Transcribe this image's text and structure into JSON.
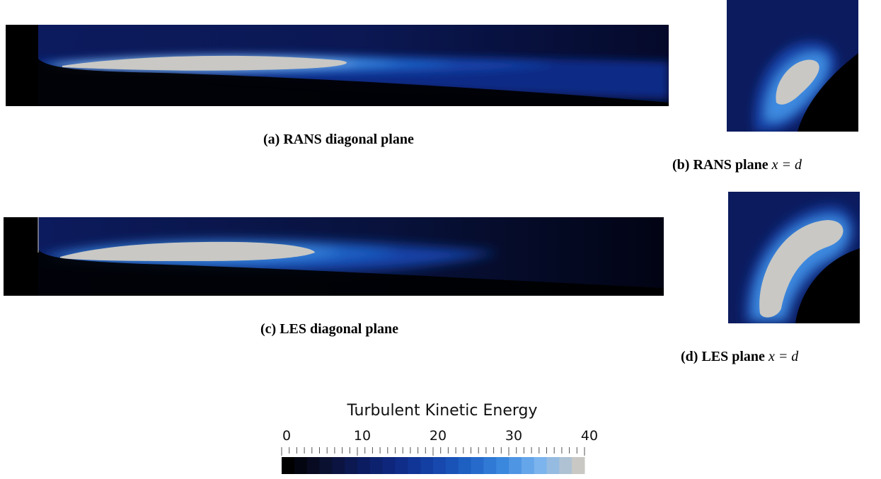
{
  "figure": {
    "panels": [
      {
        "id": "a",
        "label": "(a)",
        "title": "RANS diagonal plane",
        "math": ""
      },
      {
        "id": "b",
        "label": "(b)",
        "title": "RANS plane",
        "math": "x = d"
      },
      {
        "id": "c",
        "label": "(c)",
        "title": "LES diagonal plane",
        "math": ""
      },
      {
        "id": "d",
        "label": "(d)",
        "title": "LES plane",
        "math": "x = d"
      }
    ],
    "colorbar": {
      "title": "Turbulent Kinetic Energy",
      "min": 0,
      "max": 40,
      "tick_labels": [
        "0",
        "10",
        "20",
        "30",
        "40"
      ],
      "colors": [
        "#000000",
        "#0a0f2e",
        "#0c1b5e",
        "#0f2a86",
        "#1442a8",
        "#1f63c6",
        "#3d8ae0",
        "#7fb6ee",
        "#c9c8c4"
      ]
    }
  }
}
